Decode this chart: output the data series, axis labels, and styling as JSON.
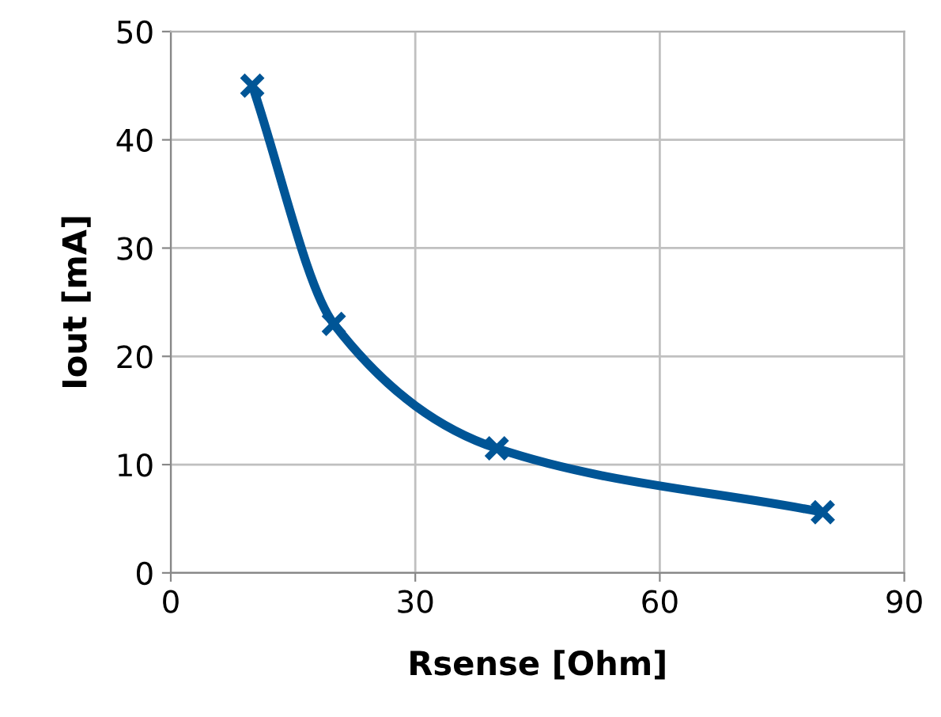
{
  "chart_data": {
    "type": "line",
    "xlabel": "Rsense [Ohm]",
    "ylabel": "Iout [mA]",
    "x": [
      10,
      20,
      40,
      80
    ],
    "series": [
      {
        "color": "#005596",
        "values": [
          45,
          23,
          11.5,
          5.6
        ]
      }
    ],
    "xlim": [
      0,
      90
    ],
    "xticks": [
      0,
      30,
      60,
      90
    ],
    "ylim": [
      0,
      50
    ],
    "yticks": [
      0,
      10,
      20,
      30,
      40,
      50
    ],
    "grid": true,
    "legend": false,
    "marker": "cross",
    "line_style": "solid"
  }
}
